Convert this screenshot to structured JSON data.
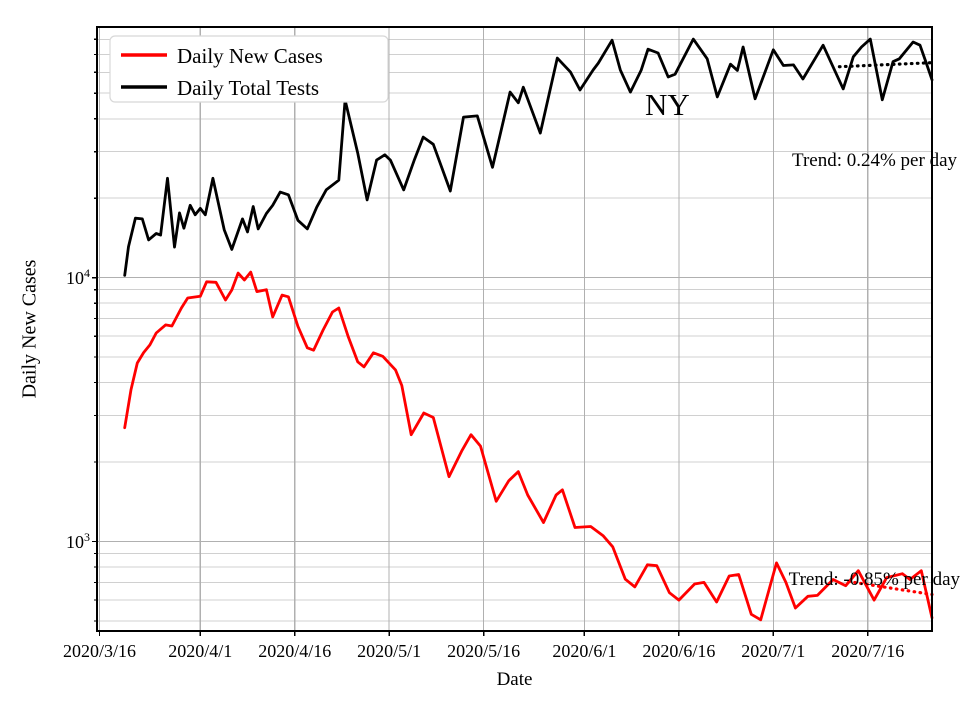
{
  "chart_data": {
    "type": "line",
    "title": "",
    "xlabel": "Date",
    "ylabel": "Daily New Cases",
    "yscale": "log",
    "grid": true,
    "legend_position": "upper left",
    "x_unit": "days since 2020/3/16",
    "xlim": [
      -0.4,
      132.2
    ],
    "ylim": [
      458,
      89100
    ],
    "x_ticks": [
      {
        "day": 0,
        "label": "2020/3/16"
      },
      {
        "day": 16,
        "label": "2020/4/1"
      },
      {
        "day": 31,
        "label": "2020/4/16"
      },
      {
        "day": 46,
        "label": "2020/5/1"
      },
      {
        "day": 61,
        "label": "2020/5/16"
      },
      {
        "day": 77,
        "label": "2020/6/1"
      },
      {
        "day": 92,
        "label": "2020/6/16"
      },
      {
        "day": 107,
        "label": "2020/7/1"
      },
      {
        "day": 122,
        "label": "2020/7/16"
      }
    ],
    "y_ticks": [
      {
        "value": 1000,
        "base": "10",
        "exp": "3"
      },
      {
        "value": 10000,
        "base": "10",
        "exp": "4"
      }
    ],
    "annotations": [
      {
        "text": "NY",
        "x_day": 87,
        "y_value": 44000
      }
    ],
    "colors": {
      "cases": "#ff0000",
      "tests": "#000000",
      "grid_major": "#b0b0b0",
      "grid_minor": "#d0d0d0",
      "legend_border": "#d8d8d8"
    },
    "series": [
      {
        "name": "Daily New Cases",
        "color": "#ff0000",
        "points": [
          [
            4,
            2700
          ],
          [
            5,
            3760
          ],
          [
            6,
            4750
          ],
          [
            7,
            5200
          ],
          [
            8,
            5560
          ],
          [
            9,
            6170
          ],
          [
            10.5,
            6620
          ],
          [
            11.5,
            6560
          ],
          [
            13,
            7670
          ],
          [
            14,
            8370
          ],
          [
            16,
            8500
          ],
          [
            17,
            9640
          ],
          [
            18.5,
            9600
          ],
          [
            20,
            8230
          ],
          [
            21,
            8980
          ],
          [
            22,
            10400
          ],
          [
            23,
            9800
          ],
          [
            24,
            10500
          ],
          [
            25,
            8850
          ],
          [
            26.5,
            9000
          ],
          [
            27.5,
            7100
          ],
          [
            29,
            8590
          ],
          [
            30,
            8460
          ],
          [
            31.5,
            6540
          ],
          [
            33,
            5420
          ],
          [
            34,
            5310
          ],
          [
            35.5,
            6330
          ],
          [
            37,
            7410
          ],
          [
            38,
            7670
          ],
          [
            39.5,
            5960
          ],
          [
            41,
            4800
          ],
          [
            42,
            4590
          ],
          [
            43.5,
            5190
          ],
          [
            45,
            5030
          ],
          [
            47,
            4470
          ],
          [
            48,
            3900
          ],
          [
            49.5,
            2540
          ],
          [
            51.5,
            3070
          ],
          [
            53,
            2950
          ],
          [
            55.5,
            1760
          ],
          [
            57.5,
            2200
          ],
          [
            59,
            2540
          ],
          [
            60.5,
            2300
          ],
          [
            63,
            1420
          ],
          [
            65,
            1700
          ],
          [
            66.5,
            1840
          ],
          [
            68,
            1500
          ],
          [
            70.5,
            1180
          ],
          [
            72.5,
            1500
          ],
          [
            73.5,
            1570
          ],
          [
            75.5,
            1130
          ],
          [
            78,
            1140
          ],
          [
            80,
            1050
          ],
          [
            81.5,
            955
          ],
          [
            83.5,
            720
          ],
          [
            85,
            673
          ],
          [
            87,
            816
          ],
          [
            88.5,
            810
          ],
          [
            90.5,
            640
          ],
          [
            92,
            600
          ],
          [
            94.5,
            690
          ],
          [
            96,
            700
          ],
          [
            98,
            590
          ],
          [
            100,
            740
          ],
          [
            101.5,
            750
          ],
          [
            103.5,
            530
          ],
          [
            105,
            505
          ],
          [
            107.5,
            830
          ],
          [
            109,
            700
          ],
          [
            110.5,
            560
          ],
          [
            112.5,
            620
          ],
          [
            114,
            625
          ],
          [
            116.5,
            718
          ],
          [
            118.5,
            680
          ],
          [
            120.5,
            775
          ],
          [
            123,
            600
          ],
          [
            125,
            730
          ],
          [
            127.5,
            755
          ],
          [
            128.7,
            718
          ],
          [
            130.5,
            775
          ],
          [
            132.2,
            514
          ]
        ]
      },
      {
        "name": "Daily Total Tests",
        "color": "#000000",
        "points": [
          [
            4,
            10200
          ],
          [
            4.6,
            13100
          ],
          [
            5.7,
            16800
          ],
          [
            6.8,
            16700
          ],
          [
            7.8,
            13900
          ],
          [
            9,
            14700
          ],
          [
            9.7,
            14500
          ],
          [
            10.8,
            23800
          ],
          [
            11.9,
            13050
          ],
          [
            12.7,
            17600
          ],
          [
            13.4,
            15400
          ],
          [
            14.4,
            18800
          ],
          [
            15.2,
            17300
          ],
          [
            16,
            18300
          ],
          [
            16.8,
            17300
          ],
          [
            18,
            23800
          ],
          [
            19.8,
            15200
          ],
          [
            21,
            12800
          ],
          [
            22.7,
            16700
          ],
          [
            23.5,
            14900
          ],
          [
            24.4,
            18600
          ],
          [
            25.2,
            15300
          ],
          [
            26.5,
            17500
          ],
          [
            27.5,
            18800
          ],
          [
            28.7,
            21100
          ],
          [
            30,
            20600
          ],
          [
            31.5,
            16500
          ],
          [
            33,
            15300
          ],
          [
            34.5,
            18500
          ],
          [
            36,
            21500
          ],
          [
            38,
            23400
          ],
          [
            39,
            47100
          ],
          [
            41,
            29700
          ],
          [
            42.5,
            19700
          ],
          [
            44,
            27900
          ],
          [
            45.3,
            29200
          ],
          [
            46.2,
            27900
          ],
          [
            48.3,
            21500
          ],
          [
            50,
            28000
          ],
          [
            51.4,
            34100
          ],
          [
            53,
            32000
          ],
          [
            55.7,
            21300
          ],
          [
            57.8,
            40600
          ],
          [
            60,
            41000
          ],
          [
            62.4,
            26200
          ],
          [
            65.2,
            50500
          ],
          [
            66.5,
            46000
          ],
          [
            67.3,
            52700
          ],
          [
            70,
            35300
          ],
          [
            72.7,
            67900
          ],
          [
            74.8,
            60100
          ],
          [
            76.3,
            51400
          ],
          [
            78.4,
            61300
          ],
          [
            79.2,
            65000
          ],
          [
            81.4,
            79400
          ],
          [
            82.7,
            61300
          ],
          [
            84.3,
            50500
          ],
          [
            86,
            61000
          ],
          [
            87.1,
            73400
          ],
          [
            88.7,
            71000
          ],
          [
            90.3,
            57600
          ],
          [
            91.4,
            59000
          ],
          [
            94.3,
            80200
          ],
          [
            96.5,
            67500
          ],
          [
            98.1,
            48400
          ],
          [
            100.2,
            64400
          ],
          [
            101.3,
            61000
          ],
          [
            102.2,
            74800
          ],
          [
            104.1,
            47600
          ],
          [
            107,
            73000
          ],
          [
            108.6,
            63700
          ],
          [
            110.2,
            64000
          ],
          [
            111.7,
            56600
          ],
          [
            114.9,
            76000
          ],
          [
            118.1,
            51900
          ],
          [
            119.7,
            68700
          ],
          [
            121,
            74800
          ],
          [
            122.4,
            80200
          ],
          [
            124.3,
            47200
          ],
          [
            126,
            65800
          ],
          [
            127,
            67500
          ],
          [
            129.2,
            78200
          ],
          [
            130.3,
            76000
          ],
          [
            131.3,
            65000
          ],
          [
            132.2,
            56200
          ]
        ]
      }
    ],
    "trend_lines": [
      {
        "series": "Daily Total Tests",
        "label": "Trend: 0.24% per day",
        "rate_percent_per_day": 0.24,
        "color": "#000000",
        "style": "dotted",
        "start_day": 117.5,
        "end_day": 132.2,
        "start_value": 63000
      },
      {
        "series": "Daily New Cases",
        "label": "Trend: -0.85% per day",
        "rate_percent_per_day": -0.85,
        "color": "#ff0000",
        "style": "dotted",
        "start_day": 119,
        "end_day": 132.2,
        "start_value": 705
      }
    ],
    "legend": {
      "entries": [
        "Daily New Cases",
        "Daily Total Tests"
      ]
    }
  }
}
